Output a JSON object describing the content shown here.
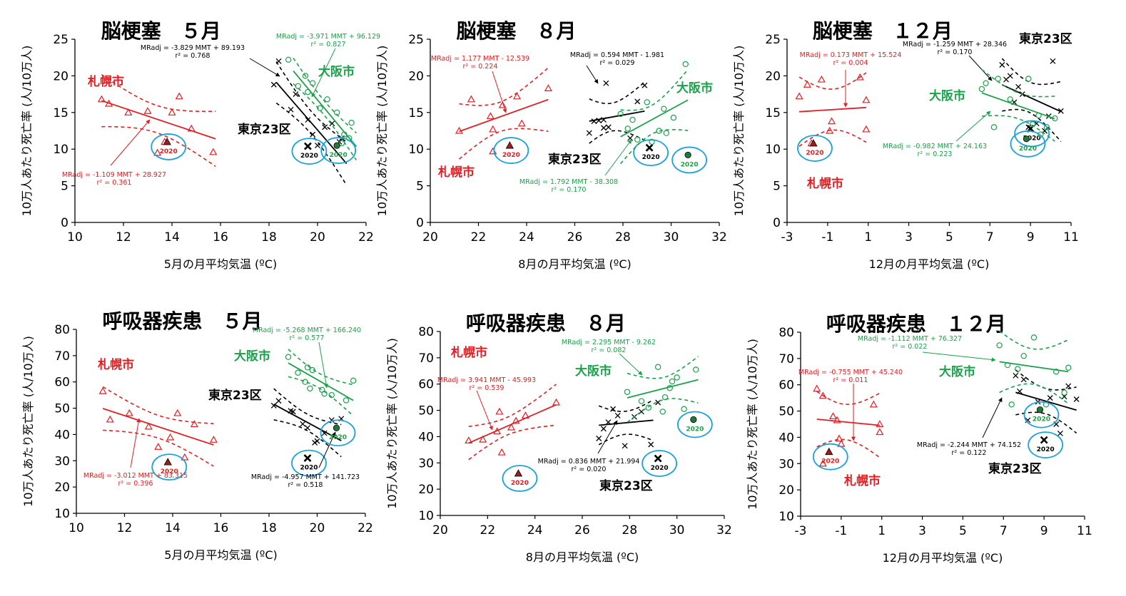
{
  "colors": {
    "sapporo": "#e31e24",
    "tokyo": "#000000",
    "osaka": "#1aa24a",
    "highlight": "#1aa3dc"
  },
  "chart_data": [
    {
      "type": "scatter",
      "title": "脳梗塞　５月",
      "xlabel": "5月の月平均気温  (ºC)",
      "ylabel": "10万人あたり死亡率 (人/10万人)",
      "xlim": [
        10,
        22
      ],
      "ylim": [
        0,
        25
      ],
      "xticks": [
        "10",
        "12",
        "14",
        "16",
        "18",
        "20",
        "22"
      ],
      "yticks": [
        "0",
        "5",
        "10",
        "15",
        "20",
        "25"
      ],
      "series": [
        {
          "name": "札幌市",
          "key": "sapporo",
          "marker": "triangle",
          "x": [
            11.1,
            11.4,
            12.2,
            13.0,
            13.7,
            14.0,
            14.3,
            14.8,
            15.7,
            13.4
          ],
          "y": [
            16.8,
            16.2,
            15.0,
            15.2,
            11.0,
            15.0,
            17.2,
            12.8,
            9.6,
            9.5
          ],
          "fit": {
            "m": -1.109,
            "b": 28.927,
            "x": [
              11.1,
              15.8
            ]
          },
          "equation": [
            "MRadj = -1.109 MMT + 28.927",
            "r² = 0.361"
          ],
          "highlight": {
            "x": 13.8,
            "y": 11.0,
            "label": "2020"
          }
        },
        {
          "name": "東京23区",
          "key": "tokyo",
          "marker": "x",
          "x": [
            18.2,
            18.4,
            18.9,
            19.1,
            19.6,
            19.8,
            20.0,
            20.3,
            20.6,
            20.9,
            21.0
          ],
          "y": [
            18.8,
            22.0,
            15.4,
            17.5,
            14.0,
            12.0,
            10.5,
            13.0,
            13.5,
            11.0,
            11.5
          ],
          "fit": {
            "m": -3.829,
            "b": 89.193,
            "x": [
              18.3,
              21.2
            ]
          },
          "equation": [
            "MRadj = -3.829 MMT + 89.193",
            "r² = 0.768"
          ],
          "highlight": {
            "x": 19.6,
            "y": 10.4,
            "label": "2020"
          }
        },
        {
          "name": "大阪市",
          "key": "osaka",
          "marker": "circle",
          "x": [
            18.8,
            19.2,
            19.5,
            19.6,
            19.8,
            20.1,
            20.4,
            20.8,
            21.1,
            21.4,
            21.3,
            21.0
          ],
          "y": [
            22.2,
            18.6,
            20.0,
            17.8,
            19.0,
            15.6,
            16.8,
            15.0,
            12.0,
            13.6,
            11.5,
            10.8
          ],
          "fit": {
            "m": -3.971,
            "b": 96.129,
            "x": [
              19.0,
              21.6
            ]
          },
          "equation": [
            "MRadj = -3.971 MMT + 96.129",
            "r² = 0.827"
          ],
          "highlight": {
            "x": 20.8,
            "y": 10.5,
            "label": "2020"
          }
        }
      ]
    },
    {
      "type": "scatter",
      "title": "脳梗塞　８月",
      "xlabel": "8月の月平均気温  (ºC)",
      "ylabel": "10万人あたり死亡率 (人/10万人)",
      "xlim": [
        20,
        32
      ],
      "ylim": [
        0,
        25
      ],
      "xticks": [
        "20",
        "22",
        "24",
        "26",
        "28",
        "30",
        "32"
      ],
      "yticks": [
        "0",
        "5",
        "10",
        "15",
        "20",
        "25"
      ],
      "series": [
        {
          "name": "札幌市",
          "key": "sapporo",
          "marker": "triangle",
          "x": [
            21.2,
            21.7,
            22.5,
            22.6,
            23.0,
            23.6,
            23.8,
            24.9,
            22.6
          ],
          "y": [
            12.5,
            16.8,
            14.5,
            12.7,
            16.0,
            17.2,
            13.5,
            18.3,
            9.7
          ],
          "fit": {
            "m": 1.177,
            "b": -12.539,
            "x": [
              21.2,
              24.9
            ]
          },
          "equation": [
            "MRadj = 1.177 MMT - 12.539",
            "r² = 0.224"
          ],
          "highlight": {
            "x": 23.3,
            "y": 10.5,
            "label": "2020"
          }
        },
        {
          "name": "東京23区",
          "key": "tokyo",
          "marker": "x",
          "x": [
            26.6,
            26.8,
            27.0,
            27.2,
            27.3,
            27.4,
            28.3,
            28.6,
            28.9,
            27.2
          ],
          "y": [
            12.2,
            13.8,
            13.9,
            14.0,
            19.0,
            13.0,
            11.5,
            16.5,
            18.7,
            12.9
          ],
          "fit": {
            "m": 0.594,
            "b": -1.981,
            "x": [
              26.6,
              28.9
            ]
          },
          "equation": [
            "MRadj = 0.594 MMT - 1.981",
            "r² = 0.029"
          ],
          "highlight": {
            "x": 29.1,
            "y": 10.2,
            "label": "2020"
          }
        },
        {
          "name": "大阪市",
          "key": "osaka",
          "marker": "circle",
          "x": [
            27.9,
            28.2,
            28.6,
            29.0,
            29.2,
            29.7,
            29.8,
            30.1,
            30.6,
            29.5,
            28.4
          ],
          "y": [
            14.8,
            12.8,
            11.3,
            16.4,
            11.0,
            15.5,
            12.2,
            14.3,
            21.6,
            12.5,
            14.0
          ],
          "fit": {
            "m": 1.792,
            "b": -38.308,
            "x": [
              27.9,
              30.7
            ]
          },
          "equation": [
            "MRadj = 1.792 MMT - 38.308",
            "r² = 0.170"
          ],
          "highlight": {
            "x": 30.7,
            "y": 9.2,
            "label": "2020"
          }
        }
      ]
    },
    {
      "type": "scatter",
      "title": "脳梗塞　１２月",
      "xlabel": "12月の月平均気温  (ºC)",
      "ylabel": "10万人あたり死亡率 (人/10万人)",
      "xlim": [
        -3,
        11
      ],
      "ylim": [
        0,
        25
      ],
      "xticks": [
        "-3",
        "-1",
        "1",
        "3",
        "5",
        "7",
        "9",
        "11"
      ],
      "yticks": [
        "0",
        "5",
        "10",
        "15",
        "20",
        "25"
      ],
      "series": [
        {
          "name": "札幌市",
          "key": "sapporo",
          "marker": "triangle",
          "x": [
            -2.4,
            -2.0,
            -1.3,
            -0.9,
            0.6,
            0.9,
            0.9,
            -0.8,
            -1.8
          ],
          "y": [
            17.2,
            18.8,
            19.5,
            12.5,
            19.8,
            16.7,
            12.7,
            13.8,
            10.8
          ],
          "fit": {
            "m": 0.173,
            "b": 15.524,
            "x": [
              -2.4,
              0.9
            ]
          },
          "equation": [
            "MRadj = 0.173 MMT + 15.524",
            "r² = 0.004"
          ],
          "highlight": {
            "x": -1.7,
            "y": 10.8,
            "label": "2020"
          }
        },
        {
          "name": "東京23区",
          "key": "tokyo",
          "marker": "x",
          "x": [
            7.6,
            7.8,
            8.0,
            8.2,
            8.4,
            8.9,
            9.3,
            9.7,
            9.9,
            10.1,
            10.5,
            8.6
          ],
          "y": [
            21.5,
            19.5,
            20.0,
            16.4,
            18.5,
            13.0,
            13.5,
            12.5,
            14.5,
            22.0,
            15.2,
            17.5
          ],
          "fit": {
            "m": -1.259,
            "b": 28.346,
            "x": [
              7.6,
              10.5
            ]
          },
          "equation": [
            "MRadj = -1.259 MMT + 28.346",
            "r² = 0.170"
          ],
          "highlight": {
            "x": 9.0,
            "y": 12.8,
            "label": "2020"
          }
        },
        {
          "name": "大阪市",
          "key": "osaka",
          "marker": "circle",
          "x": [
            6.6,
            6.8,
            7.2,
            7.4,
            8.0,
            8.9,
            9.1,
            9.4,
            9.5,
            9.8,
            10.2
          ],
          "y": [
            18.2,
            19.0,
            13.0,
            19.6,
            16.8,
            19.6,
            13.4,
            14.6,
            12.0,
            13.0,
            14.2
          ],
          "fit": {
            "m": -0.982,
            "b": 24.163,
            "x": [
              6.6,
              10.2
            ]
          },
          "equation": [
            "MRadj = -0.982 MMT + 24.163",
            "r² = 0.223"
          ],
          "highlight": {
            "x": 8.8,
            "y": 11.4,
            "label": "2020"
          }
        }
      ]
    },
    {
      "type": "scatter",
      "title": "呼吸器疾患　５月",
      "xlabel": "5月の月平均気温  (ºC)",
      "ylabel": "10万人あたり死亡率 (人/10万人)",
      "xlim": [
        10,
        22
      ],
      "ylim": [
        10,
        80
      ],
      "xticks": [
        "10",
        "12",
        "14",
        "16",
        "18",
        "20",
        "22"
      ],
      "yticks": [
        "10",
        "20",
        "30",
        "40",
        "50",
        "60",
        "70",
        "80"
      ],
      "series": [
        {
          "name": "札幌市",
          "key": "sapporo",
          "marker": "triangle",
          "x": [
            11.1,
            11.4,
            12.2,
            13.0,
            13.4,
            13.9,
            14.2,
            14.5,
            14.9,
            15.7
          ],
          "y": [
            56.5,
            45.7,
            48.1,
            43.0,
            35.3,
            38.9,
            48.1,
            31.3,
            43.9,
            38.0
          ],
          "fit": {
            "m": -3.012,
            "b": 83.315,
            "x": [
              11.1,
              15.7
            ]
          },
          "equation": [
            "MRadj = -3.012 MMT + 83.315",
            "r² = 0.396"
          ],
          "highlight": {
            "x": 13.8,
            "y": 29.5,
            "label": "2020"
          }
        },
        {
          "name": "東京23区",
          "key": "tokyo",
          "marker": "x",
          "x": [
            18.2,
            18.4,
            18.9,
            19.0,
            19.4,
            19.6,
            19.9,
            20.0,
            20.3,
            20.6,
            21.0
          ],
          "y": [
            51.0,
            52.8,
            49.0,
            48.7,
            44.0,
            42.5,
            36.9,
            37.5,
            40.5,
            45.5,
            46.0
          ],
          "fit": {
            "m": -4.957,
            "b": 141.723,
            "x": [
              18.2,
              21.0
            ]
          },
          "equation": [
            "MRadj = -4.957 MMT + 141.723",
            "r² = 0.518"
          ],
          "highlight": {
            "x": 19.6,
            "y": 31.0,
            "label": "2020"
          }
        },
        {
          "name": "大阪市",
          "key": "osaka",
          "marker": "circle",
          "x": [
            18.8,
            19.2,
            19.5,
            19.6,
            19.7,
            19.8,
            20.2,
            20.3,
            20.6,
            21.2,
            21.5
          ],
          "y": [
            69.5,
            63.5,
            60.0,
            65.5,
            57.5,
            64.5,
            57.0,
            55.5,
            55.0,
            53.0,
            60.5
          ],
          "fit": {
            "m": -5.268,
            "b": 166.24,
            "x": [
              18.8,
              21.5
            ]
          },
          "equation": [
            "MRadj = -5.268 MMT + 166.240",
            "r² = 0.577"
          ],
          "highlight": {
            "x": 20.8,
            "y": 42.5,
            "label": "2020"
          }
        }
      ]
    },
    {
      "type": "scatter",
      "title": "呼吸器疾患　８月",
      "xlabel": "8月の月平均気温  (ºC)",
      "ylabel": "10万人あたり死亡率 (人/10万人)",
      "xlim": [
        20,
        32
      ],
      "ylim": [
        10,
        80
      ],
      "xticks": [
        "20",
        "22",
        "24",
        "26",
        "28",
        "30",
        "32"
      ],
      "yticks": [
        "10",
        "20",
        "30",
        "40",
        "50",
        "60",
        "70",
        "80"
      ],
      "series": [
        {
          "name": "札幌市",
          "key": "sapporo",
          "marker": "triangle",
          "x": [
            21.2,
            21.8,
            22.4,
            22.5,
            22.6,
            23.0,
            23.2,
            23.6,
            24.9
          ],
          "y": [
            38.5,
            38.9,
            42.0,
            49.5,
            34.0,
            43.5,
            46.0,
            48.0,
            53.0
          ],
          "fit": {
            "m": 3.941,
            "b": -45.993,
            "x": [
              21.2,
              24.9
            ]
          },
          "equation": [
            "MRadj = 3.941 MMT - 45.993",
            "r² = 0.539"
          ],
          "highlight": {
            "x": 23.3,
            "y": 26.0,
            "label": "2020"
          }
        },
        {
          "name": "東京23区",
          "key": "tokyo",
          "marker": "x",
          "x": [
            26.7,
            26.9,
            27.1,
            27.3,
            27.5,
            27.8,
            28.2,
            28.5,
            28.9,
            29.2
          ],
          "y": [
            39.3,
            43.0,
            45.5,
            50.5,
            48.0,
            36.5,
            47.5,
            49.5,
            37.0,
            53.0
          ],
          "fit": {
            "m": 0.836,
            "b": 21.994,
            "x": [
              26.7,
              29.0
            ]
          },
          "equation": [
            "MRadj = 0.836 MMT + 21.994",
            "r² = 0.020"
          ],
          "highlight": {
            "x": 29.2,
            "y": 31.7,
            "label": "2020"
          }
        },
        {
          "name": "大阪市",
          "key": "osaka",
          "marker": "circle",
          "x": [
            27.9,
            28.5,
            28.8,
            29.2,
            29.4,
            29.7,
            29.8,
            30.0,
            30.3,
            30.8,
            29.5
          ],
          "y": [
            57.0,
            53.5,
            51.0,
            66.5,
            49.5,
            58.5,
            61.0,
            62.5,
            50.5,
            65.5,
            55.0
          ],
          "fit": {
            "m": 2.295,
            "b": -9.262,
            "x": [
              27.9,
              30.9
            ]
          },
          "equation": [
            "MRadj = 2.295 MMT - 9.262",
            "r² = 0.082"
          ],
          "highlight": {
            "x": 30.7,
            "y": 46.5,
            "label": "2020"
          }
        }
      ]
    },
    {
      "type": "scatter",
      "title": "呼吸器疾患　１２月",
      "xlabel": "12月の月平均気温  (ºC)",
      "ylabel": "10万人あたり死亡率 (人/10万人)",
      "xlim": [
        -3,
        11
      ],
      "ylim": [
        10,
        80
      ],
      "xticks": [
        "-3",
        "-1",
        "1",
        "3",
        "5",
        "7",
        "9",
        "11"
      ],
      "yticks": [
        "10",
        "20",
        "30",
        "40",
        "50",
        "60",
        "70",
        "80"
      ],
      "series": [
        {
          "name": "札幌市",
          "key": "sapporo",
          "marker": "triangle",
          "x": [
            -2.2,
            -1.9,
            -1.4,
            -1.2,
            -1.1,
            -1.0,
            0.6,
            0.9,
            0.9,
            -1.9
          ],
          "y": [
            58.5,
            55.8,
            48.0,
            46.5,
            39.5,
            37.5,
            52.5,
            45.0,
            42.0,
            30.0
          ],
          "fit": {
            "m": -0.755,
            "b": 45.24,
            "x": [
              -2.2,
              0.9
            ]
          },
          "equation": [
            "MRadj = -0.755 MMT + 45.240",
            "r² = 0.011"
          ],
          "highlight": {
            "x": -1.6,
            "y": 34.5,
            "label": "2020"
          }
        },
        {
          "name": "東京23区",
          "key": "tokyo",
          "marker": "x",
          "x": [
            7.6,
            7.8,
            8.0,
            8.2,
            8.7,
            9.3,
            9.6,
            9.8,
            10.0,
            10.2,
            10.6
          ],
          "y": [
            63.5,
            57.5,
            62.0,
            46.5,
            53.5,
            55.0,
            45.0,
            41.5,
            55.5,
            59.5,
            54.5
          ],
          "fit": {
            "m": -2.244,
            "b": 74.152,
            "x": [
              7.6,
              10.6
            ]
          },
          "equation": [
            "MRadj = -2.244 MMT + 74.152",
            "r² = 0.122"
          ],
          "highlight": {
            "x": 9.0,
            "y": 39.0,
            "label": "2020"
          }
        },
        {
          "name": "大阪市",
          "key": "osaka",
          "marker": "circle",
          "x": [
            6.8,
            7.2,
            7.7,
            8.0,
            8.5,
            9.1,
            9.6,
            10.0,
            10.2,
            7.4
          ],
          "y": [
            75.0,
            67.5,
            66.0,
            71.0,
            78.0,
            52.5,
            65.0,
            57.0,
            66.5,
            52.5
          ],
          "fit": {
            "m": -1.112,
            "b": 76.327,
            "x": [
              6.8,
              10.2
            ]
          },
          "equation": [
            "MRadj = -1.112 MMT + 76.327",
            "r² = 0.022"
          ],
          "highlight": {
            "x": 8.8,
            "y": 50.5,
            "label": "2020"
          }
        }
      ]
    }
  ]
}
